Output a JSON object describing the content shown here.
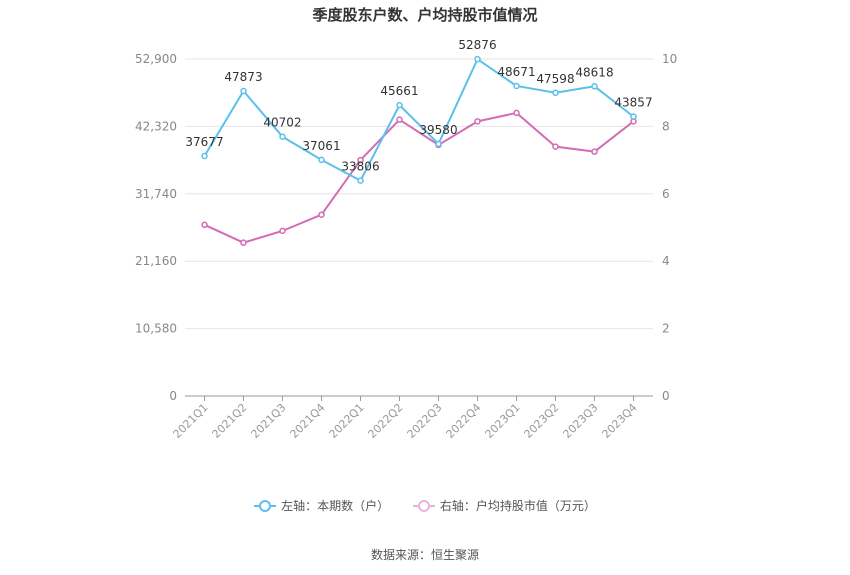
{
  "title": "季度股东户数、户均持股市值情况",
  "source_text": "数据来源：恒生聚源",
  "legend": [
    {
      "label": "左轴：本期数（户）",
      "color": "#5bc0eb"
    },
    {
      "label": "右轴：户均持股市值（万元）",
      "color": "#d36bb5"
    }
  ],
  "chart_data": {
    "type": "line",
    "categories": [
      "2021Q1",
      "2021Q2",
      "2021Q3",
      "2021Q4",
      "2022Q1",
      "2022Q2",
      "2022Q3",
      "2022Q4",
      "2023Q1",
      "2023Q2",
      "2023Q3",
      "2023Q4"
    ],
    "left_axis": {
      "ticks": [
        0,
        10580,
        21160,
        31740,
        42320,
        52900
      ],
      "tick_labels": [
        "0",
        "10,580",
        "21,160",
        "31,740",
        "42,320",
        "52,900"
      ],
      "ylim": [
        0,
        52900
      ]
    },
    "right_axis": {
      "ticks": [
        0,
        2,
        4,
        6,
        8,
        10
      ],
      "tick_labels": [
        "0",
        "2",
        "4",
        "6",
        "8",
        "10"
      ],
      "ylim": [
        0,
        10
      ]
    },
    "series": [
      {
        "name": "左轴：本期数（户）",
        "axis": "left",
        "color": "#5bc0eb",
        "values": [
          37677,
          47873,
          40702,
          37061,
          33806,
          45661,
          39580,
          52876,
          48671,
          47598,
          48618,
          43857
        ],
        "data_labels": [
          "37677",
          "47873",
          "40702",
          "37061",
          "33806",
          "45661",
          "39580",
          "52876",
          "48671",
          "47598",
          "48618",
          "43857"
        ]
      },
      {
        "name": "右轴：户均持股市值（万元）",
        "axis": "right",
        "color": "#d36bb5",
        "values": [
          5.08,
          4.55,
          4.9,
          5.38,
          7.0,
          8.2,
          7.45,
          8.15,
          8.4,
          7.4,
          7.25,
          8.15
        ]
      }
    ],
    "grid": true,
    "legend_position": "bottom"
  }
}
